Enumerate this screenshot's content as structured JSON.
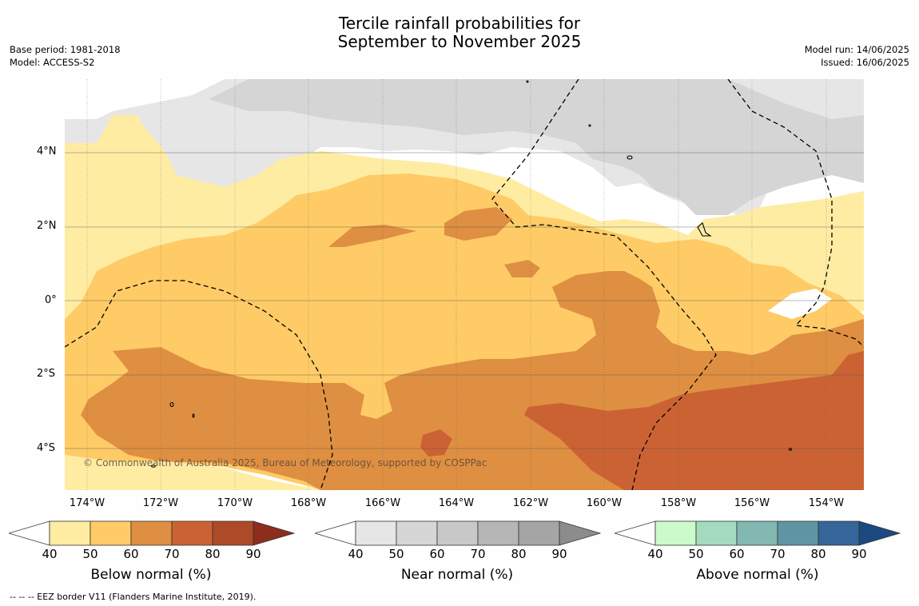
{
  "title": [
    "Tercile rainfall probabilities for",
    "September to November 2025"
  ],
  "meta_left": [
    "Base period: 1981-2018",
    "Model: ACCESS-S2"
  ],
  "meta_right": [
    "Model run: 14/06/2025",
    "Issued: 16/06/2025"
  ],
  "copyright": "© Commonwealth of Australia 2025, Bureau of Meteorology, supported by COSPPac",
  "lat_labels": [
    "4°N",
    "2°N",
    "0°",
    "2°S",
    "4°S"
  ],
  "lon_labels": [
    "174°W",
    "172°W",
    "170°W",
    "168°W",
    "166°W",
    "164°W",
    "162°W",
    "160°W",
    "158°W",
    "156°W",
    "154°W"
  ],
  "colorbars": [
    {
      "title": "Below normal (%)",
      "colors": [
        "#ffeca3",
        "#fecb66",
        "#df8f41",
        "#cb6233",
        "#ad4a28",
        "#8c2d1d"
      ],
      "ticks": [
        "40",
        "50",
        "60",
        "70",
        "80",
        "90"
      ]
    },
    {
      "title": "Near normal (%)",
      "colors": [
        "#e6e6e6",
        "#d6d6d6",
        "#c8c8c8",
        "#b6b6b6",
        "#a5a5a5",
        "#8c8c8c"
      ],
      "ticks": [
        "40",
        "50",
        "60",
        "70",
        "80",
        "90"
      ]
    },
    {
      "title": "Above normal (%)",
      "colors": [
        "#cbfbcb",
        "#a4dbbf",
        "#83b8b2",
        "#5f95a3",
        "#356599",
        "#1a4a80"
      ],
      "ticks": [
        "40",
        "50",
        "60",
        "70",
        "80",
        "90"
      ]
    }
  ],
  "footnote": "-- -- -- EEZ border V11 (Flanders Marine Institute, 2019)."
}
